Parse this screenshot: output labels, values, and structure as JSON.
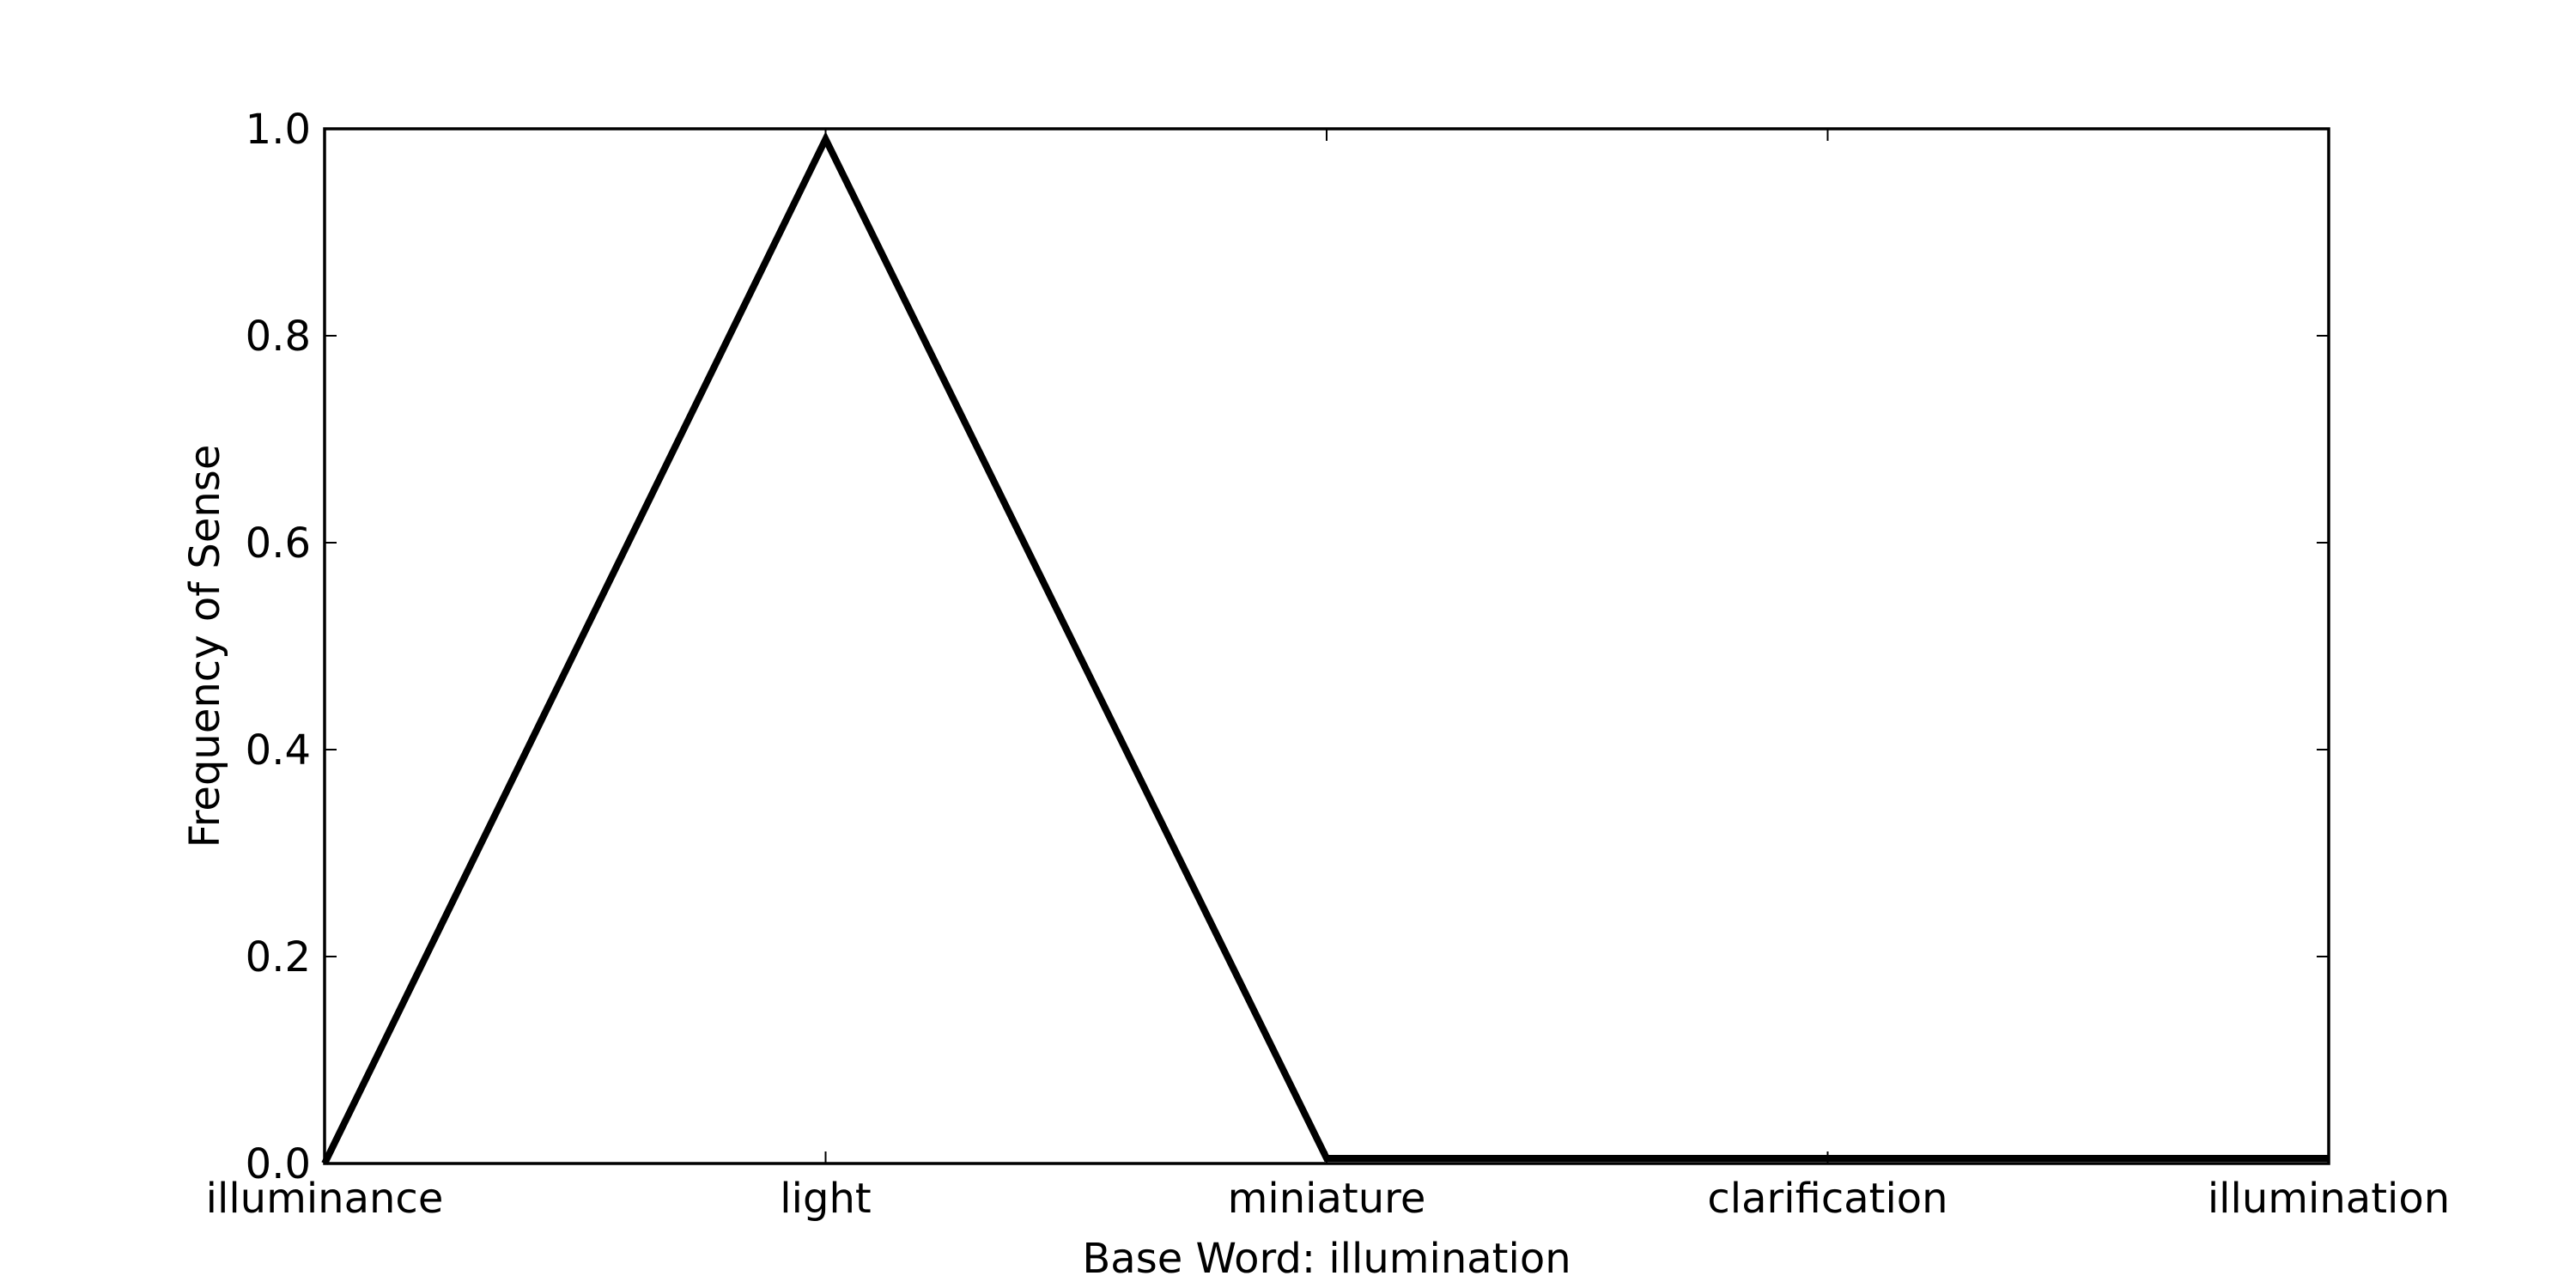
{
  "chart_data": {
    "type": "line",
    "categories": [
      "illuminance",
      "light",
      "miniature",
      "clarification",
      "illumination"
    ],
    "series": [
      {
        "values": [
          0.0,
          0.99,
          0.005,
          0.005,
          0.005
        ]
      }
    ],
    "xlabel": "Base Word: illumination",
    "ylabel": "Frequency of Sense",
    "ylim": [
      0,
      1.0
    ],
    "yticks": [
      0.0,
      0.2,
      0.4,
      0.6,
      0.8,
      1.0
    ],
    "ytick_labels": [
      "0.0",
      "0.2",
      "0.4",
      "0.6",
      "0.8",
      "1.0"
    ],
    "grid": false,
    "legend": "none",
    "colors": {
      "line": "#000000",
      "frame": "#000000"
    }
  }
}
